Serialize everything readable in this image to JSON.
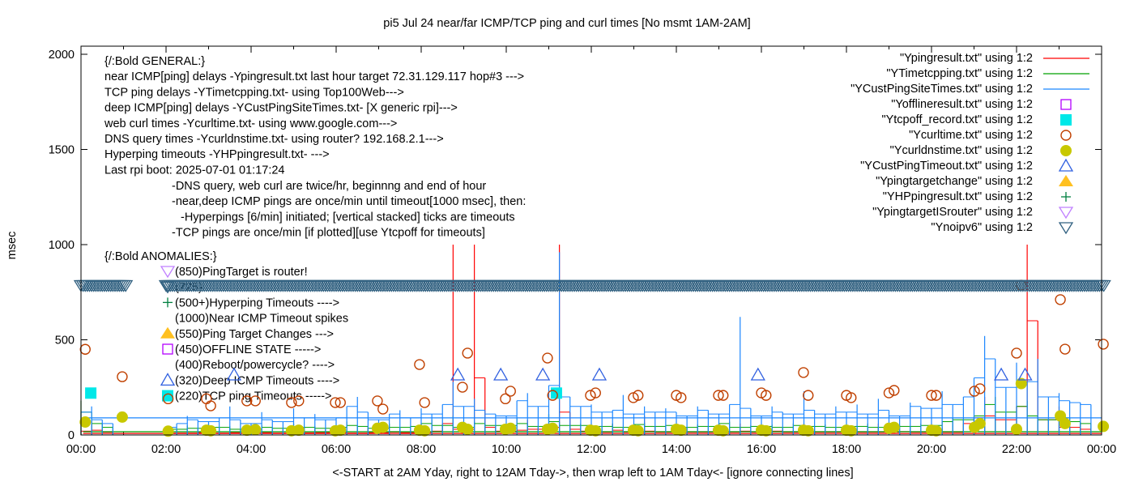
{
  "chart_data": {
    "type": "line",
    "title": "pi5 Jul 24  near/far ICMP/TCP ping and curl times [No msmt 1AM-2AM]",
    "xlabel": "<-START at 2AM Yday, right to 12AM Tday->, then wrap left to 1AM Tday<- [ignore connecting lines]",
    "ylabel": "msec",
    "xlim": [
      0,
      24
    ],
    "ylim": [
      0,
      2050
    ],
    "x_ticks": [
      0,
      2,
      4,
      6,
      8,
      10,
      12,
      14,
      16,
      18,
      20,
      22,
      24
    ],
    "x_tick_labels": [
      "00:00",
      "02:00",
      "04:00",
      "06:00",
      "08:00",
      "10:00",
      "12:00",
      "14:00",
      "16:00",
      "18:00",
      "20:00",
      "22:00",
      "00:00"
    ],
    "y_ticks": [
      0,
      500,
      1000,
      1500,
      2000
    ],
    "y_tick_labels": [
      "0",
      "500",
      "1000",
      "1500",
      "2000"
    ],
    "legend_position": "top-right",
    "sample_step_hours": 0.25,
    "series": [
      {
        "name": "\"Ypingresult.txt\" using 1:2",
        "style": "line",
        "color": "#ff0000",
        "wrap_connect": 8,
        "values": [
          20,
          60,
          25,
          15,
          null,
          null,
          null,
          null,
          10,
          12,
          10,
          14,
          12,
          10,
          15,
          12,
          10,
          12,
          14,
          10,
          12,
          11,
          30,
          12,
          14,
          12,
          10,
          40,
          12,
          15,
          30,
          12,
          14,
          20,
          60,
          1000,
          30,
          1000,
          300,
          40,
          20,
          25,
          80,
          30,
          40,
          1000,
          120,
          30,
          20,
          15,
          60,
          25,
          15,
          100,
          20,
          15,
          20,
          15,
          40,
          15,
          18,
          15,
          60,
          20,
          15,
          20,
          30,
          15,
          60,
          15,
          20,
          15,
          15,
          20,
          15,
          60,
          15,
          20,
          18,
          15,
          20,
          40,
          15,
          60,
          90,
          200,
          100,
          80,
          150,
          1000,
          600,
          80,
          150,
          40,
          60,
          30
        ]
      },
      {
        "name": "\"YTimetcpping.txt\" using 1:2",
        "style": "line",
        "color": "#00a000",
        "wrap_connect": 17,
        "values": [
          180,
          120,
          60,
          40,
          null,
          null,
          null,
          null,
          40,
          30,
          50,
          35,
          60,
          40,
          45,
          30,
          30,
          50,
          40,
          35,
          60,
          40,
          45,
          35,
          40,
          70,
          50,
          45,
          35,
          60,
          40,
          45,
          60,
          80,
          50,
          100,
          40,
          70,
          60,
          50,
          50,
          90,
          60,
          45,
          110,
          70,
          50,
          60,
          50,
          45,
          60,
          40,
          55,
          65,
          45,
          50,
          50,
          40,
          55,
          45,
          60,
          70,
          40,
          50,
          45,
          55,
          40,
          60,
          50,
          45,
          55,
          40,
          50,
          45,
          60,
          40,
          55,
          50,
          45,
          60,
          50,
          70,
          90,
          80,
          100,
          160,
          200,
          120,
          150,
          180,
          100,
          80,
          120,
          90,
          70,
          60
        ]
      },
      {
        "name": "\"YCustPingSiteTimes.txt\" using 1:2",
        "style": "line",
        "color": "#1a86ff",
        "wrap_connect": 90,
        "values": [
          120,
          150,
          80,
          60,
          null,
          null,
          null,
          null,
          40,
          60,
          100,
          80,
          70,
          90,
          150,
          80,
          60,
          120,
          80,
          70,
          140,
          90,
          110,
          80,
          90,
          150,
          200,
          120,
          80,
          110,
          130,
          90,
          140,
          110,
          160,
          280,
          150,
          190,
          130,
          110,
          100,
          180,
          220,
          150,
          260,
          960,
          200,
          150,
          160,
          120,
          130,
          210,
          110,
          150,
          120,
          140,
          120,
          100,
          150,
          130,
          110,
          160,
          620,
          140,
          100,
          150,
          120,
          110,
          230,
          130,
          110,
          150,
          120,
          160,
          110,
          190,
          130,
          100,
          170,
          150,
          140,
          230,
          160,
          200,
          300,
          520,
          400,
          250,
          380,
          280,
          400,
          200,
          220,
          180,
          170,
          160
        ]
      },
      {
        "name": "\"Yofflineresult.txt\" using 1:2",
        "style": "open-square",
        "color": "#b400ff",
        "points": []
      },
      {
        "name": "\"Ytcpoff_record.txt\" using 1:2",
        "style": "filled-square",
        "color": "#00e8e8",
        "points": [
          [
            0.23,
            220
          ],
          [
            11.18,
            220
          ]
        ]
      },
      {
        "name": "\"Ycurltime.txt\" using 1:2",
        "style": "open-circle",
        "color": "#c04000",
        "points": [
          [
            0.1,
            450
          ],
          [
            0.97,
            306
          ],
          [
            2.05,
            190
          ],
          [
            2.95,
            190
          ],
          [
            3.05,
            153
          ],
          [
            3.9,
            179
          ],
          [
            4.1,
            179
          ],
          [
            4.95,
            170
          ],
          [
            5.12,
            179
          ],
          [
            5.98,
            170
          ],
          [
            6.1,
            170
          ],
          [
            6.97,
            179
          ],
          [
            7.1,
            136
          ],
          [
            7.96,
            370
          ],
          [
            8.08,
            170
          ],
          [
            8.97,
            251
          ],
          [
            9.09,
            430
          ],
          [
            9.98,
            190
          ],
          [
            10.1,
            230
          ],
          [
            10.97,
            404
          ],
          [
            11.09,
            208
          ],
          [
            11.98,
            208
          ],
          [
            12.1,
            221
          ],
          [
            12.99,
            196
          ],
          [
            13.1,
            208
          ],
          [
            14.0,
            208
          ],
          [
            14.11,
            196
          ],
          [
            14.99,
            208
          ],
          [
            15.1,
            208
          ],
          [
            16.0,
            221
          ],
          [
            16.11,
            208
          ],
          [
            16.99,
            328
          ],
          [
            17.1,
            208
          ],
          [
            18.0,
            208
          ],
          [
            18.11,
            196
          ],
          [
            19.0,
            221
          ],
          [
            19.12,
            234
          ],
          [
            20.0,
            208
          ],
          [
            20.11,
            208
          ],
          [
            21.01,
            230
          ],
          [
            21.14,
            243
          ],
          [
            22.0,
            430
          ],
          [
            22.11,
            787
          ],
          [
            23.03,
            711
          ],
          [
            23.14,
            451
          ],
          [
            24.04,
            477
          ]
        ]
      },
      {
        "name": "\"Ycurldnstime.txt\" using 1:2",
        "style": "filled-circle",
        "color": "#c8c800",
        "points": [
          [
            0.1,
            68
          ],
          [
            0.97,
            94
          ],
          [
            2.05,
            20
          ],
          [
            2.95,
            25
          ],
          [
            3.05,
            22
          ],
          [
            3.9,
            25
          ],
          [
            4.1,
            28
          ],
          [
            4.95,
            22
          ],
          [
            5.12,
            25
          ],
          [
            5.98,
            22
          ],
          [
            6.1,
            25
          ],
          [
            6.97,
            35
          ],
          [
            7.1,
            40
          ],
          [
            7.96,
            25
          ],
          [
            8.08,
            22
          ],
          [
            8.97,
            40
          ],
          [
            9.09,
            30
          ],
          [
            9.98,
            30
          ],
          [
            10.1,
            35
          ],
          [
            10.97,
            30
          ],
          [
            11.09,
            35
          ],
          [
            11.98,
            25
          ],
          [
            12.1,
            22
          ],
          [
            12.99,
            25
          ],
          [
            13.1,
            22
          ],
          [
            14.0,
            30
          ],
          [
            14.11,
            25
          ],
          [
            14.99,
            25
          ],
          [
            15.1,
            22
          ],
          [
            16.0,
            25
          ],
          [
            16.11,
            22
          ],
          [
            16.99,
            25
          ],
          [
            17.1,
            22
          ],
          [
            18.0,
            25
          ],
          [
            18.11,
            22
          ],
          [
            19.0,
            35
          ],
          [
            19.12,
            40
          ],
          [
            20.0,
            25
          ],
          [
            20.11,
            22
          ],
          [
            21.01,
            40
          ],
          [
            21.14,
            60
          ],
          [
            22.0,
            30
          ],
          [
            22.11,
            270
          ],
          [
            23.03,
            100
          ],
          [
            23.14,
            60
          ],
          [
            24.04,
            45
          ]
        ]
      },
      {
        "name": "\"YCustPingTimeout.txt\" using 1:2",
        "style": "open-triangle",
        "color": "#3060e0",
        "points": [
          [
            3.6,
            315
          ],
          [
            8.86,
            315
          ],
          [
            9.87,
            315
          ],
          [
            10.86,
            315
          ],
          [
            12.19,
            315
          ],
          [
            15.92,
            315
          ],
          [
            21.64,
            315
          ],
          [
            22.2,
            315
          ]
        ]
      },
      {
        "name": "\"Ypingtargetchange\" using 1:2",
        "style": "filled-triangle",
        "color": "#ffc020",
        "points": []
      },
      {
        "name": "\"YHPpingresult.txt\" using 1:2",
        "style": "plus",
        "color": "#008040",
        "points": []
      },
      {
        "name": "\"YpingtargetISrouter\" using 1:2",
        "style": "open-inv-triangle",
        "color": "#c080ff",
        "points": []
      },
      {
        "name": "\"Ynoipv6\" using 1:2",
        "style": "open-inv-triangle",
        "color": "#306080",
        "value": 785,
        "step_hours": 0.05,
        "ranges": [
          [
            0.0,
            1.1
          ],
          [
            2.0,
            24.1
          ]
        ]
      }
    ],
    "annotations": {
      "general": [
        "{/:Bold GENERAL:}",
        "near ICMP[ping] delays -Ypingresult.txt last hour target 72.31.129.117 hop#3 --->",
        "TCP ping delays -YTimetcpping.txt- using Top100Web--->",
        "deep ICMP[ping] delays -YCustPingSiteTimes.txt- [X generic rpi]--->",
        "web curl times -Ycurltime.txt- using www.google.com--->",
        "DNS query times -Ycurldnstime.txt- using router? 192.168.2.1--->",
        "Hyperping timeouts -YHPpingresult.txt- --->",
        "Last rpi boot: 2025-07-01 01:17:24"
      ],
      "notes": [
        "-DNS query, web curl are twice/hr, beginnng and end of hour",
        "-near,deep ICMP pings are once/min until timeout[1000 msec], then:",
        "-Hyperpings [6/min] initiated; [vertical stacked] ticks are timeouts",
        "-TCP pings are once/min [if plotted][use Ytcpoff for timeouts]"
      ],
      "anomalies_title": "{/:Bold ANOMALIES:}",
      "anomalies": [
        "(850)PingTarget is router!",
        "(725)",
        "(500+)Hyperping Timeouts ---->",
        "(1000)Near ICMP Timeout spikes",
        "(550)Ping Target Changes --->",
        "(450)OFFLINE STATE ----->",
        "(400)Reboot/powercycle? ---->",
        "(320)Deep ICMP Timeouts ---->",
        "(220)TCP ping Timeouts ----->"
      ]
    }
  }
}
